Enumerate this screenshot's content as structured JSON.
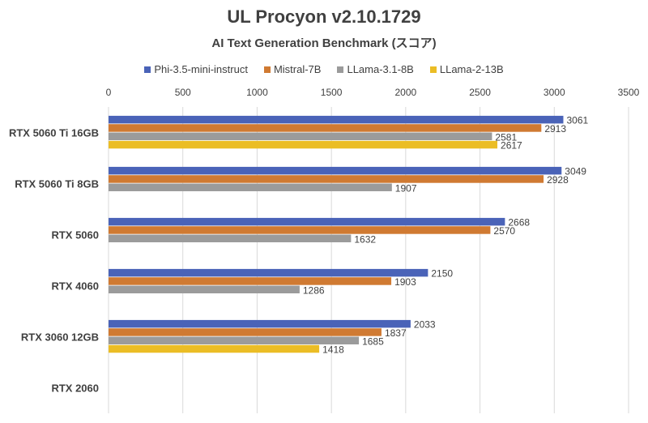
{
  "chart_data": {
    "type": "bar",
    "orientation": "horizontal",
    "title": "UL Procyon v2.10.1729",
    "subtitle": "AI Text Generation Benchmark (スコア)",
    "categories": [
      "RTX 5060 Ti 16GB",
      "RTX 5060 Ti 8GB",
      "RTX 5060",
      "RTX 4060",
      "RTX 3060 12GB",
      "RTX 2060"
    ],
    "series": [
      {
        "name": "Phi-3.5-mini-instruct",
        "color": "#4a63b8",
        "values": [
          3061,
          3049,
          2668,
          2150,
          2033,
          null
        ]
      },
      {
        "name": "Mistral-7B",
        "color": "#d07a32",
        "values": [
          2913,
          2928,
          2570,
          1903,
          1837,
          null
        ]
      },
      {
        "name": "LLama-3.1-8B",
        "color": "#9b9b9b",
        "values": [
          2581,
          1907,
          1632,
          1286,
          1685,
          null
        ]
      },
      {
        "name": "LLama-2-13B",
        "color": "#ebbd25",
        "values": [
          2617,
          null,
          null,
          null,
          1418,
          null
        ]
      }
    ],
    "xlim": [
      0,
      3500
    ],
    "xticks": [
      "0",
      "500",
      "1000",
      "1500",
      "2000",
      "2500",
      "3000",
      "3500"
    ],
    "xaxis_position": "top",
    "grid": true,
    "legend_position": "top",
    "data_labels": true
  }
}
